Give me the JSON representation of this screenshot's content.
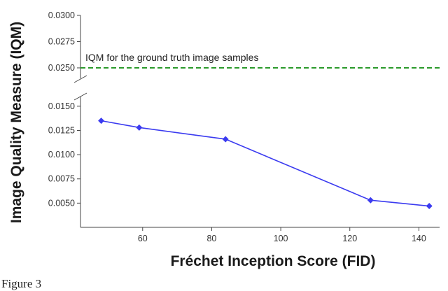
{
  "chart_data": {
    "type": "line",
    "xlabel": "Fréchet Inception Score (FID)",
    "ylabel": "Image Quality Measure (IQM)",
    "x": [
      48,
      59,
      84,
      126,
      143
    ],
    "series": [
      {
        "values": [
          0.0135,
          0.0128,
          0.0116,
          0.0053,
          0.0047
        ],
        "color": "#3b3bf0"
      }
    ],
    "xlim": [
      42,
      146
    ],
    "ylim_lower": [
      0.0025,
      0.016
    ],
    "ylim_upper": [
      0.024,
      0.03
    ],
    "broken_y_axis": true,
    "x_ticks": [
      60,
      80,
      100,
      120,
      140
    ],
    "y_ticks_lower": [
      "0.0050",
      "0.0075",
      "0.0100",
      "0.0125",
      "0.0150"
    ],
    "y_ticks_upper": [
      "0.0250",
      "0.0275",
      "0.0300"
    ],
    "reference_line": {
      "value": 0.025,
      "label": "IQM for the ground truth image samples",
      "color": "#2a9a2a",
      "style": "dashed"
    },
    "grid": false
  },
  "caption": "Figure 3"
}
